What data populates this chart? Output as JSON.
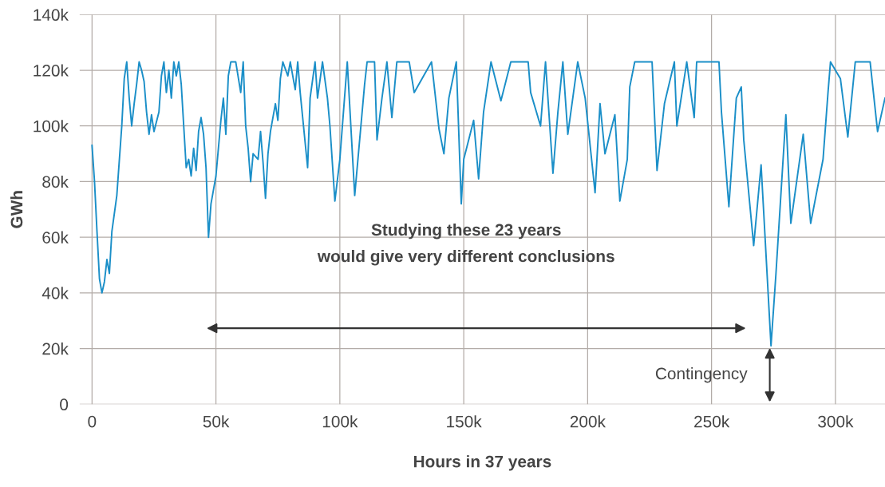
{
  "chart_data": {
    "type": "line",
    "xlabel": "Hours in 37 years",
    "ylabel": "GWh",
    "xlim": [
      -5000,
      320000
    ],
    "ylim": [
      0,
      140000
    ],
    "xticks": [
      {
        "value": 0,
        "label": "0"
      },
      {
        "value": 50000,
        "label": "50k"
      },
      {
        "value": 100000,
        "label": "100k"
      },
      {
        "value": 150000,
        "label": "150k"
      },
      {
        "value": 200000,
        "label": "200k"
      },
      {
        "value": 250000,
        "label": "250k"
      },
      {
        "value": 300000,
        "label": "300k"
      }
    ],
    "yticks": [
      {
        "value": 0,
        "label": "0"
      },
      {
        "value": 20000,
        "label": "20k"
      },
      {
        "value": 40000,
        "label": "40k"
      },
      {
        "value": 60000,
        "label": "60k"
      },
      {
        "value": 80000,
        "label": "80k"
      },
      {
        "value": 100000,
        "label": "100k"
      },
      {
        "value": 120000,
        "label": "120k"
      },
      {
        "value": 140000,
        "label": "140k"
      }
    ],
    "grid": true,
    "legend": false,
    "marker": "none",
    "line_style": "solid",
    "annotations": [
      "Studying these 23 years\nwould give very different conclusions",
      {
        "text": "Contingency",
        "x": 273500,
        "y": 21000
      }
    ],
    "series": [
      {
        "color": "#1b8fc8",
        "x": [
          0,
          1000,
          2000,
          3000,
          4000,
          5000,
          6000,
          7000,
          8000,
          10000,
          12000,
          13000,
          14000,
          15000,
          16000,
          17000,
          18000,
          19000,
          20000,
          21000,
          22000,
          23000,
          24000,
          25000,
          27000,
          28000,
          29000,
          30000,
          31000,
          32000,
          33000,
          34000,
          35000,
          36000,
          37000,
          38000,
          39000,
          40000,
          41000,
          42000,
          43000,
          44000,
          45000,
          46000,
          47000,
          48000,
          49000,
          50000,
          52000,
          53000,
          54000,
          55000,
          56000,
          58000,
          60000,
          61000,
          62000,
          63000,
          64000,
          65000,
          67000,
          68000,
          69000,
          70000,
          71000,
          72000,
          74000,
          75000,
          76000,
          77000,
          79000,
          80000,
          82000,
          83000,
          84000,
          87000,
          88000,
          90000,
          91000,
          93000,
          95000,
          96000,
          98000,
          100000,
          103000,
          106000,
          110000,
          111000,
          114000,
          115000,
          117000,
          119000,
          121000,
          123000,
          128000,
          130000,
          137000,
          140000,
          142000,
          144000,
          147000,
          149000,
          150000,
          154000,
          156000,
          158000,
          161000,
          165000,
          169000,
          176000,
          177000,
          181000,
          183000,
          186000,
          188000,
          190000,
          192000,
          196000,
          199000,
          203000,
          205000,
          207000,
          211000,
          213000,
          216000,
          217000,
          219000,
          226000,
          228000,
          231000,
          235000,
          236000,
          240000,
          243000,
          244000,
          253000,
          254000,
          257000,
          260000,
          262000,
          263000,
          267000,
          270000,
          274000,
          276000,
          280000,
          282000,
          287000,
          290000,
          295000,
          297000,
          298000,
          302000,
          305000,
          308000,
          314000,
          317000,
          320000
        ],
        "values": [
          93000,
          80000,
          62000,
          45000,
          40000,
          44000,
          52000,
          47000,
          62000,
          75000,
          100000,
          117000,
          123000,
          110000,
          100000,
          108000,
          115000,
          123000,
          120000,
          116000,
          105000,
          97000,
          104000,
          98000,
          105000,
          118000,
          123000,
          112000,
          120000,
          110000,
          123000,
          118000,
          123000,
          115000,
          100000,
          85000,
          88000,
          82000,
          92000,
          84000,
          98000,
          103000,
          97000,
          85000,
          60000,
          72000,
          77000,
          82000,
          102000,
          110000,
          97000,
          118000,
          123000,
          123000,
          112000,
          123000,
          100000,
          92000,
          80000,
          90000,
          88000,
          98000,
          87000,
          74000,
          90000,
          98000,
          108000,
          102000,
          117000,
          123000,
          118000,
          123000,
          113000,
          123000,
          112000,
          85000,
          110000,
          123000,
          110000,
          123000,
          110000,
          100000,
          73000,
          88000,
          123000,
          75000,
          115000,
          123000,
          123000,
          95000,
          110000,
          123000,
          103000,
          123000,
          123000,
          112000,
          123000,
          99000,
          90000,
          110000,
          123000,
          72000,
          88000,
          102000,
          81000,
          105000,
          123000,
          109000,
          123000,
          123000,
          112000,
          100000,
          123000,
          83000,
          105000,
          123000,
          97000,
          123000,
          110000,
          76000,
          108000,
          90000,
          104000,
          73000,
          88000,
          114000,
          123000,
          123000,
          84000,
          108000,
          123000,
          100000,
          123000,
          103000,
          123000,
          123000,
          105000,
          71000,
          110000,
          114000,
          95000,
          57000,
          86000,
          21000,
          47000,
          104000,
          65000,
          97000,
          65000,
          88000,
          112000,
          123000,
          117000,
          96000,
          123000,
          123000,
          98000,
          110000
        ]
      }
    ]
  }
}
